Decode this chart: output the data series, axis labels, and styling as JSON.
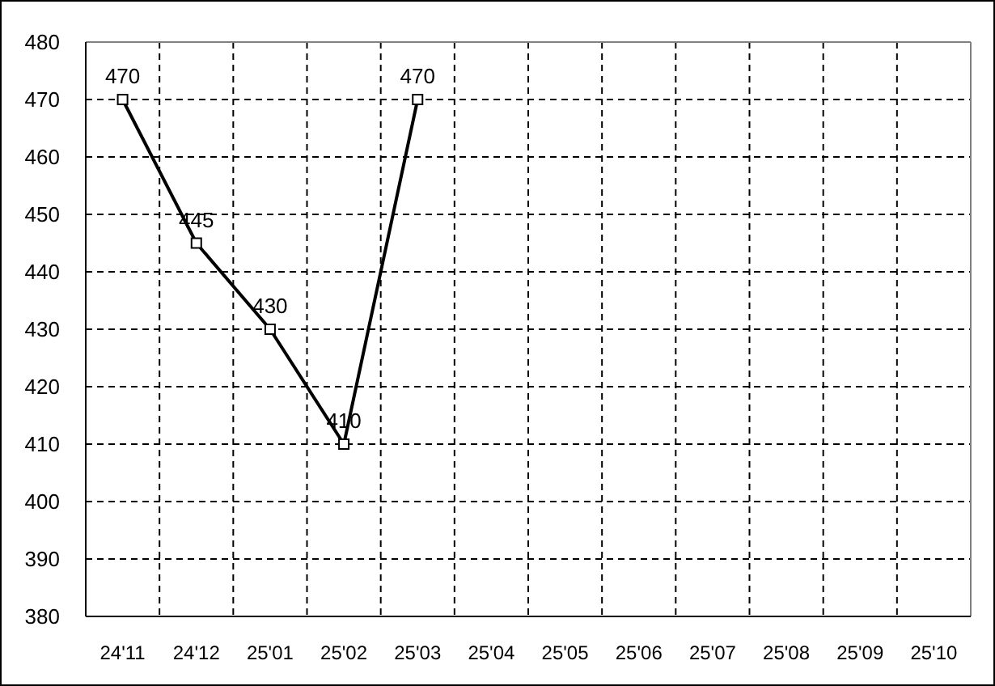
{
  "chart_data": {
    "type": "line",
    "categories": [
      "24'11",
      "24'12",
      "25'01",
      "25'02",
      "25'03",
      "25'04",
      "25'05",
      "25'06",
      "25'07",
      "25'08",
      "25'09",
      "25'10"
    ],
    "values": [
      470,
      445,
      430,
      410,
      470,
      null,
      null,
      null,
      null,
      null,
      null,
      null
    ],
    "color": "#000000",
    "ylim": [
      380,
      480
    ],
    "yticks": [
      380,
      390,
      400,
      410,
      420,
      430,
      440,
      450,
      460,
      470,
      480
    ],
    "grid": true,
    "marker": "square",
    "line_style": "solid",
    "data_labels": true
  }
}
